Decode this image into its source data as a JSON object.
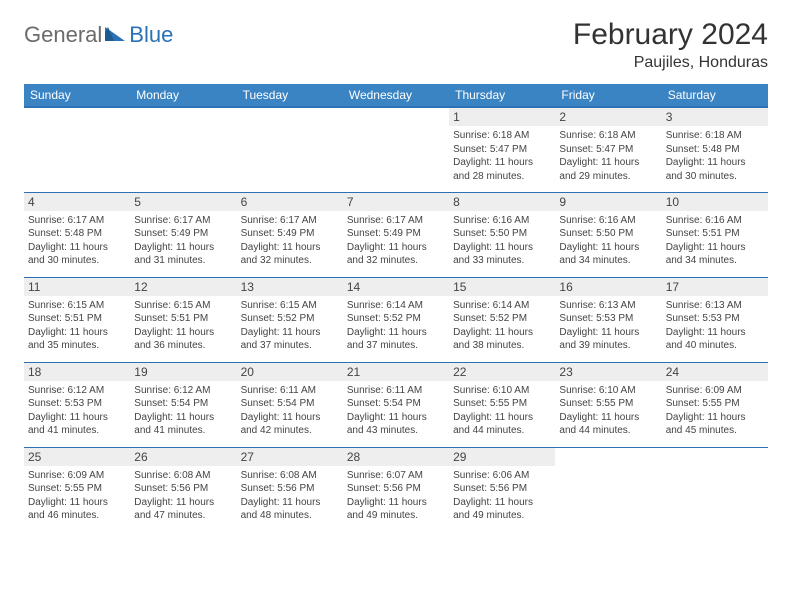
{
  "logo": {
    "part1": "General",
    "part2": "Blue"
  },
  "title": "February 2024",
  "location": "Paujiles, Honduras",
  "colors": {
    "header_bg": "#3b84c4",
    "header_border": "#2a72b5",
    "daynum_bg": "#eeeeee",
    "text": "#444444",
    "logo_gray": "#6b6b6b",
    "logo_blue": "#2a72b5"
  },
  "weekdays": [
    "Sunday",
    "Monday",
    "Tuesday",
    "Wednesday",
    "Thursday",
    "Friday",
    "Saturday"
  ],
  "weeks": [
    [
      {
        "n": "",
        "sr": "",
        "ss": "",
        "dl": ""
      },
      {
        "n": "",
        "sr": "",
        "ss": "",
        "dl": ""
      },
      {
        "n": "",
        "sr": "",
        "ss": "",
        "dl": ""
      },
      {
        "n": "",
        "sr": "",
        "ss": "",
        "dl": ""
      },
      {
        "n": "1",
        "sr": "Sunrise: 6:18 AM",
        "ss": "Sunset: 5:47 PM",
        "dl": "Daylight: 11 hours and 28 minutes."
      },
      {
        "n": "2",
        "sr": "Sunrise: 6:18 AM",
        "ss": "Sunset: 5:47 PM",
        "dl": "Daylight: 11 hours and 29 minutes."
      },
      {
        "n": "3",
        "sr": "Sunrise: 6:18 AM",
        "ss": "Sunset: 5:48 PM",
        "dl": "Daylight: 11 hours and 30 minutes."
      }
    ],
    [
      {
        "n": "4",
        "sr": "Sunrise: 6:17 AM",
        "ss": "Sunset: 5:48 PM",
        "dl": "Daylight: 11 hours and 30 minutes."
      },
      {
        "n": "5",
        "sr": "Sunrise: 6:17 AM",
        "ss": "Sunset: 5:49 PM",
        "dl": "Daylight: 11 hours and 31 minutes."
      },
      {
        "n": "6",
        "sr": "Sunrise: 6:17 AM",
        "ss": "Sunset: 5:49 PM",
        "dl": "Daylight: 11 hours and 32 minutes."
      },
      {
        "n": "7",
        "sr": "Sunrise: 6:17 AM",
        "ss": "Sunset: 5:49 PM",
        "dl": "Daylight: 11 hours and 32 minutes."
      },
      {
        "n": "8",
        "sr": "Sunrise: 6:16 AM",
        "ss": "Sunset: 5:50 PM",
        "dl": "Daylight: 11 hours and 33 minutes."
      },
      {
        "n": "9",
        "sr": "Sunrise: 6:16 AM",
        "ss": "Sunset: 5:50 PM",
        "dl": "Daylight: 11 hours and 34 minutes."
      },
      {
        "n": "10",
        "sr": "Sunrise: 6:16 AM",
        "ss": "Sunset: 5:51 PM",
        "dl": "Daylight: 11 hours and 34 minutes."
      }
    ],
    [
      {
        "n": "11",
        "sr": "Sunrise: 6:15 AM",
        "ss": "Sunset: 5:51 PM",
        "dl": "Daylight: 11 hours and 35 minutes."
      },
      {
        "n": "12",
        "sr": "Sunrise: 6:15 AM",
        "ss": "Sunset: 5:51 PM",
        "dl": "Daylight: 11 hours and 36 minutes."
      },
      {
        "n": "13",
        "sr": "Sunrise: 6:15 AM",
        "ss": "Sunset: 5:52 PM",
        "dl": "Daylight: 11 hours and 37 minutes."
      },
      {
        "n": "14",
        "sr": "Sunrise: 6:14 AM",
        "ss": "Sunset: 5:52 PM",
        "dl": "Daylight: 11 hours and 37 minutes."
      },
      {
        "n": "15",
        "sr": "Sunrise: 6:14 AM",
        "ss": "Sunset: 5:52 PM",
        "dl": "Daylight: 11 hours and 38 minutes."
      },
      {
        "n": "16",
        "sr": "Sunrise: 6:13 AM",
        "ss": "Sunset: 5:53 PM",
        "dl": "Daylight: 11 hours and 39 minutes."
      },
      {
        "n": "17",
        "sr": "Sunrise: 6:13 AM",
        "ss": "Sunset: 5:53 PM",
        "dl": "Daylight: 11 hours and 40 minutes."
      }
    ],
    [
      {
        "n": "18",
        "sr": "Sunrise: 6:12 AM",
        "ss": "Sunset: 5:53 PM",
        "dl": "Daylight: 11 hours and 41 minutes."
      },
      {
        "n": "19",
        "sr": "Sunrise: 6:12 AM",
        "ss": "Sunset: 5:54 PM",
        "dl": "Daylight: 11 hours and 41 minutes."
      },
      {
        "n": "20",
        "sr": "Sunrise: 6:11 AM",
        "ss": "Sunset: 5:54 PM",
        "dl": "Daylight: 11 hours and 42 minutes."
      },
      {
        "n": "21",
        "sr": "Sunrise: 6:11 AM",
        "ss": "Sunset: 5:54 PM",
        "dl": "Daylight: 11 hours and 43 minutes."
      },
      {
        "n": "22",
        "sr": "Sunrise: 6:10 AM",
        "ss": "Sunset: 5:55 PM",
        "dl": "Daylight: 11 hours and 44 minutes."
      },
      {
        "n": "23",
        "sr": "Sunrise: 6:10 AM",
        "ss": "Sunset: 5:55 PM",
        "dl": "Daylight: 11 hours and 44 minutes."
      },
      {
        "n": "24",
        "sr": "Sunrise: 6:09 AM",
        "ss": "Sunset: 5:55 PM",
        "dl": "Daylight: 11 hours and 45 minutes."
      }
    ],
    [
      {
        "n": "25",
        "sr": "Sunrise: 6:09 AM",
        "ss": "Sunset: 5:55 PM",
        "dl": "Daylight: 11 hours and 46 minutes."
      },
      {
        "n": "26",
        "sr": "Sunrise: 6:08 AM",
        "ss": "Sunset: 5:56 PM",
        "dl": "Daylight: 11 hours and 47 minutes."
      },
      {
        "n": "27",
        "sr": "Sunrise: 6:08 AM",
        "ss": "Sunset: 5:56 PM",
        "dl": "Daylight: 11 hours and 48 minutes."
      },
      {
        "n": "28",
        "sr": "Sunrise: 6:07 AM",
        "ss": "Sunset: 5:56 PM",
        "dl": "Daylight: 11 hours and 49 minutes."
      },
      {
        "n": "29",
        "sr": "Sunrise: 6:06 AM",
        "ss": "Sunset: 5:56 PM",
        "dl": "Daylight: 11 hours and 49 minutes."
      },
      {
        "n": "",
        "sr": "",
        "ss": "",
        "dl": ""
      },
      {
        "n": "",
        "sr": "",
        "ss": "",
        "dl": ""
      }
    ]
  ]
}
